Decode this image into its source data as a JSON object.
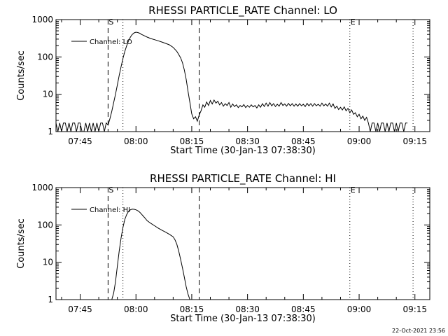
{
  "footer": {
    "timestamp": "22-Oct-2021 23:56"
  },
  "chart_data": [
    {
      "type": "line",
      "title": "RHESSI PARTICLE_RATE Channel: LO",
      "xlabel": "Start Time (30-Jan-13 07:38:30)",
      "ylabel": "Counts/sec",
      "log_y": true,
      "xlim": [
        "07:38:30",
        "09:19:00"
      ],
      "ylim": [
        1,
        1000
      ],
      "x_ticks": [
        "07:45",
        "08:00",
        "08:15",
        "08:30",
        "08:45",
        "09:00",
        "09:15"
      ],
      "y_ticks": [
        "1",
        "10",
        "100",
        "1000"
      ],
      "legend": {
        "position": "top-left",
        "entries": [
          "Channel: LO"
        ]
      },
      "markers": [
        {
          "label": "S",
          "time": "07:52:30",
          "style": "dashed"
        },
        {
          "label": "",
          "time": "07:56:30",
          "style": "dotted"
        },
        {
          "label": "",
          "time": "08:17:00",
          "style": "dashed"
        },
        {
          "label": "E",
          "time": "08:57:30",
          "style": "dotted"
        },
        {
          "label": "",
          "time": "09:14:30",
          "style": "dotted"
        }
      ],
      "series": [
        {
          "name": "Channel: LO",
          "points": [
            [
              "07:38:30",
              1.7
            ],
            [
              "07:39:00",
              1.0
            ],
            [
              "07:39:30",
              1.7
            ],
            [
              "07:40:00",
              1.0
            ],
            [
              "07:40:30",
              1.7
            ],
            [
              "07:41:00",
              1.7
            ],
            [
              "07:41:30",
              1.0
            ],
            [
              "07:42:00",
              1.7
            ],
            [
              "07:42:30",
              1.0
            ],
            [
              "07:43:00",
              1.7
            ],
            [
              "07:43:30",
              1.7
            ],
            [
              "07:44:00",
              1.0
            ],
            [
              "07:44:30",
              1.7
            ],
            [
              "07:45:00",
              1.7
            ],
            [
              "07:45:30",
              1.0
            ],
            [
              "07:46:00",
              1.0
            ],
            [
              "07:46:30",
              1.7
            ],
            [
              "07:47:00",
              1.0
            ],
            [
              "07:47:30",
              1.7
            ],
            [
              "07:48:00",
              1.0
            ],
            [
              "07:48:30",
              1.7
            ],
            [
              "07:49:00",
              1.0
            ],
            [
              "07:49:30",
              1.7
            ],
            [
              "07:50:00",
              1.0
            ],
            [
              "07:50:30",
              1.7
            ],
            [
              "07:51:00",
              1.7
            ],
            [
              "07:51:30",
              1.0
            ],
            [
              "07:52:00",
              1.7
            ],
            [
              "07:52:30",
              1.5
            ],
            [
              "07:53:00",
              2.2
            ],
            [
              "07:53:30",
              3.5
            ],
            [
              "07:54:00",
              6
            ],
            [
              "07:54:30",
              10
            ],
            [
              "07:55:00",
              18
            ],
            [
              "07:55:30",
              32
            ],
            [
              "07:56:00",
              55
            ],
            [
              "07:56:30",
              90
            ],
            [
              "07:57:00",
              140
            ],
            [
              "07:57:30",
              200
            ],
            [
              "07:58:00",
              270
            ],
            [
              "07:58:30",
              340
            ],
            [
              "07:59:00",
              400
            ],
            [
              "07:59:30",
              440
            ],
            [
              "08:00:00",
              460
            ],
            [
              "08:00:30",
              450
            ],
            [
              "08:01:00",
              430
            ],
            [
              "08:01:30",
              400
            ],
            [
              "08:02:00",
              380
            ],
            [
              "08:02:30",
              360
            ],
            [
              "08:03:00",
              340
            ],
            [
              "08:04:00",
              310
            ],
            [
              "08:05:00",
              290
            ],
            [
              "08:06:00",
              270
            ],
            [
              "08:07:00",
              250
            ],
            [
              "08:08:00",
              230
            ],
            [
              "08:09:00",
              210
            ],
            [
              "08:10:00",
              180
            ],
            [
              "08:11:00",
              140
            ],
            [
              "08:12:00",
              95
            ],
            [
              "08:12:30",
              70
            ],
            [
              "08:13:00",
              45
            ],
            [
              "08:13:30",
              25
            ],
            [
              "08:14:00",
              12
            ],
            [
              "08:14:30",
              6
            ],
            [
              "08:15:00",
              3
            ],
            [
              "08:15:30",
              2.2
            ],
            [
              "08:16:00",
              2.5
            ],
            [
              "08:16:30",
              1.9
            ],
            [
              "08:17:00",
              2.8
            ],
            [
              "08:17:30",
              3.6
            ],
            [
              "08:18:00",
              5.2
            ],
            [
              "08:18:30",
              4.5
            ],
            [
              "08:19:00",
              6.2
            ],
            [
              "08:19:30",
              5.0
            ],
            [
              "08:20:00",
              6.8
            ],
            [
              "08:20:30",
              5.5
            ],
            [
              "08:21:00",
              7.0
            ],
            [
              "08:21:30",
              5.8
            ],
            [
              "08:22:00",
              6.5
            ],
            [
              "08:22:30",
              5.2
            ],
            [
              "08:23:00",
              6.0
            ],
            [
              "08:23:30",
              4.8
            ],
            [
              "08:24:00",
              5.6
            ],
            [
              "08:24:30",
              5.0
            ],
            [
              "08:25:00",
              6.0
            ],
            [
              "08:25:30",
              4.5
            ],
            [
              "08:26:00",
              5.5
            ],
            [
              "08:26:30",
              4.7
            ],
            [
              "08:27:00",
              5.2
            ],
            [
              "08:27:30",
              4.4
            ],
            [
              "08:28:00",
              5.0
            ],
            [
              "08:28:30",
              4.6
            ],
            [
              "08:29:00",
              5.3
            ],
            [
              "08:29:30",
              4.4
            ],
            [
              "08:30:00",
              5.0
            ],
            [
              "08:30:30",
              4.5
            ],
            [
              "08:31:00",
              5.2
            ],
            [
              "08:31:30",
              4.6
            ],
            [
              "08:32:00",
              5.0
            ],
            [
              "08:32:30",
              4.3
            ],
            [
              "08:33:00",
              5.2
            ],
            [
              "08:33:30",
              4.5
            ],
            [
              "08:34:00",
              5.6
            ],
            [
              "08:34:30",
              4.7
            ],
            [
              "08:35:00",
              5.8
            ],
            [
              "08:35:30",
              4.8
            ],
            [
              "08:36:00",
              6.0
            ],
            [
              "08:36:30",
              4.9
            ],
            [
              "08:37:00",
              5.6
            ],
            [
              "08:37:30",
              4.7
            ],
            [
              "08:38:00",
              5.4
            ],
            [
              "08:38:30",
              4.8
            ],
            [
              "08:39:00",
              6.0
            ],
            [
              "08:39:30",
              5.0
            ],
            [
              "08:40:00",
              5.5
            ],
            [
              "08:40:30",
              4.8
            ],
            [
              "08:41:00",
              5.7
            ],
            [
              "08:41:30",
              4.9
            ],
            [
              "08:42:00",
              5.6
            ],
            [
              "08:42:30",
              4.8
            ],
            [
              "08:43:00",
              5.5
            ],
            [
              "08:43:30",
              4.8
            ],
            [
              "08:44:00",
              5.6
            ],
            [
              "08:44:30",
              4.9
            ],
            [
              "08:45:00",
              5.4
            ],
            [
              "08:45:30",
              4.7
            ],
            [
              "08:46:00",
              5.7
            ],
            [
              "08:46:30",
              4.9
            ],
            [
              "08:47:00",
              5.6
            ],
            [
              "08:47:30",
              4.8
            ],
            [
              "08:48:00",
              5.6
            ],
            [
              "08:48:30",
              4.9
            ],
            [
              "08:49:00",
              5.4
            ],
            [
              "08:49:30",
              4.8
            ],
            [
              "08:50:00",
              5.8
            ],
            [
              "08:50:30",
              4.9
            ],
            [
              "08:51:00",
              5.5
            ],
            [
              "08:51:30",
              4.8
            ],
            [
              "08:52:00",
              5.8
            ],
            [
              "08:52:30",
              4.6
            ],
            [
              "08:53:00",
              5.5
            ],
            [
              "08:53:30",
              4.2
            ],
            [
              "08:54:00",
              4.8
            ],
            [
              "08:54:30",
              3.9
            ],
            [
              "08:55:00",
              4.5
            ],
            [
              "08:55:30",
              3.8
            ],
            [
              "08:56:00",
              4.6
            ],
            [
              "08:56:30",
              3.6
            ],
            [
              "08:57:00",
              4.2
            ],
            [
              "08:57:30",
              3.2
            ],
            [
              "08:58:00",
              3.8
            ],
            [
              "08:58:30",
              2.9
            ],
            [
              "08:59:00",
              3.2
            ],
            [
              "08:59:30",
              2.5
            ],
            [
              "09:00:00",
              2.9
            ],
            [
              "09:00:30",
              2.2
            ],
            [
              "09:01:00",
              2.6
            ],
            [
              "09:01:30",
              2.0
            ],
            [
              "09:02:00",
              2.4
            ],
            [
              "09:02:30",
              1.7
            ],
            [
              "09:03:00",
              1.0
            ],
            [
              "09:03:30",
              1.7
            ],
            [
              "09:04:00",
              1.7
            ],
            [
              "09:04:30",
              1.0
            ],
            [
              "09:05:00",
              1.7
            ],
            [
              "09:05:30",
              1.0
            ],
            [
              "09:06:00",
              1.7
            ],
            [
              "09:06:30",
              1.7
            ],
            [
              "09:07:00",
              1.0
            ],
            [
              "09:07:30",
              1.7
            ],
            [
              "09:08:00",
              1.0
            ],
            [
              "09:08:30",
              1.7
            ],
            [
              "09:09:00",
              1.7
            ],
            [
              "09:09:30",
              1.0
            ],
            [
              "09:10:00",
              1.7
            ],
            [
              "09:10:30",
              1.0
            ],
            [
              "09:11:00",
              1.7
            ],
            [
              "09:11:30",
              1.7
            ],
            [
              "09:12:00",
              1.0
            ],
            [
              "09:12:30",
              1.7
            ],
            [
              "09:13:00",
              1.7
            ]
          ]
        }
      ]
    },
    {
      "type": "line",
      "title": "RHESSI PARTICLE_RATE Channel: HI",
      "xlabel": "Start Time (30-Jan-13 07:38:30)",
      "ylabel": "Counts/sec",
      "log_y": true,
      "xlim": [
        "07:38:30",
        "09:19:00"
      ],
      "ylim": [
        1,
        1000
      ],
      "x_ticks": [
        "07:45",
        "08:00",
        "08:15",
        "08:30",
        "08:45",
        "09:00",
        "09:15"
      ],
      "y_ticks": [
        "1",
        "10",
        "100",
        "1000"
      ],
      "legend": {
        "position": "top-left",
        "entries": [
          "Channel: HI"
        ]
      },
      "markers": [
        {
          "label": "S",
          "time": "07:52:30",
          "style": "dashed"
        },
        {
          "label": "",
          "time": "07:56:30",
          "style": "dotted"
        },
        {
          "label": "",
          "time": "08:17:00",
          "style": "dashed"
        },
        {
          "label": "E",
          "time": "08:57:30",
          "style": "dotted"
        },
        {
          "label": "",
          "time": "09:14:30",
          "style": "dotted"
        }
      ],
      "series": [
        {
          "name": "Channel: HI",
          "points": [
            [
              "07:53:30",
              1.0
            ],
            [
              "07:54:00",
              1.5
            ],
            [
              "07:54:30",
              3
            ],
            [
              "07:55:00",
              8
            ],
            [
              "07:55:30",
              20
            ],
            [
              "07:56:00",
              45
            ],
            [
              "07:56:30",
              85
            ],
            [
              "07:57:00",
              140
            ],
            [
              "07:57:30",
              190
            ],
            [
              "07:58:00",
              230
            ],
            [
              "07:58:30",
              255
            ],
            [
              "07:59:00",
              265
            ],
            [
              "07:59:30",
              262
            ],
            [
              "08:00:00",
              255
            ],
            [
              "08:00:30",
              240
            ],
            [
              "08:01:00",
              220
            ],
            [
              "08:01:30",
              195
            ],
            [
              "08:02:00",
              170
            ],
            [
              "08:02:30",
              150
            ],
            [
              "08:03:00",
              130
            ],
            [
              "08:04:00",
              110
            ],
            [
              "08:05:00",
              95
            ],
            [
              "08:06:00",
              82
            ],
            [
              "08:07:00",
              72
            ],
            [
              "08:08:00",
              64
            ],
            [
              "08:09:00",
              56
            ],
            [
              "08:10:00",
              48
            ],
            [
              "08:10:30",
              40
            ],
            [
              "08:11:00",
              30
            ],
            [
              "08:11:30",
              20
            ],
            [
              "08:12:00",
              12
            ],
            [
              "08:12:30",
              7
            ],
            [
              "08:13:00",
              4
            ],
            [
              "08:13:30",
              2.2
            ],
            [
              "08:14:00",
              1.4
            ],
            [
              "08:14:30",
              1.0
            ]
          ]
        }
      ]
    }
  ]
}
